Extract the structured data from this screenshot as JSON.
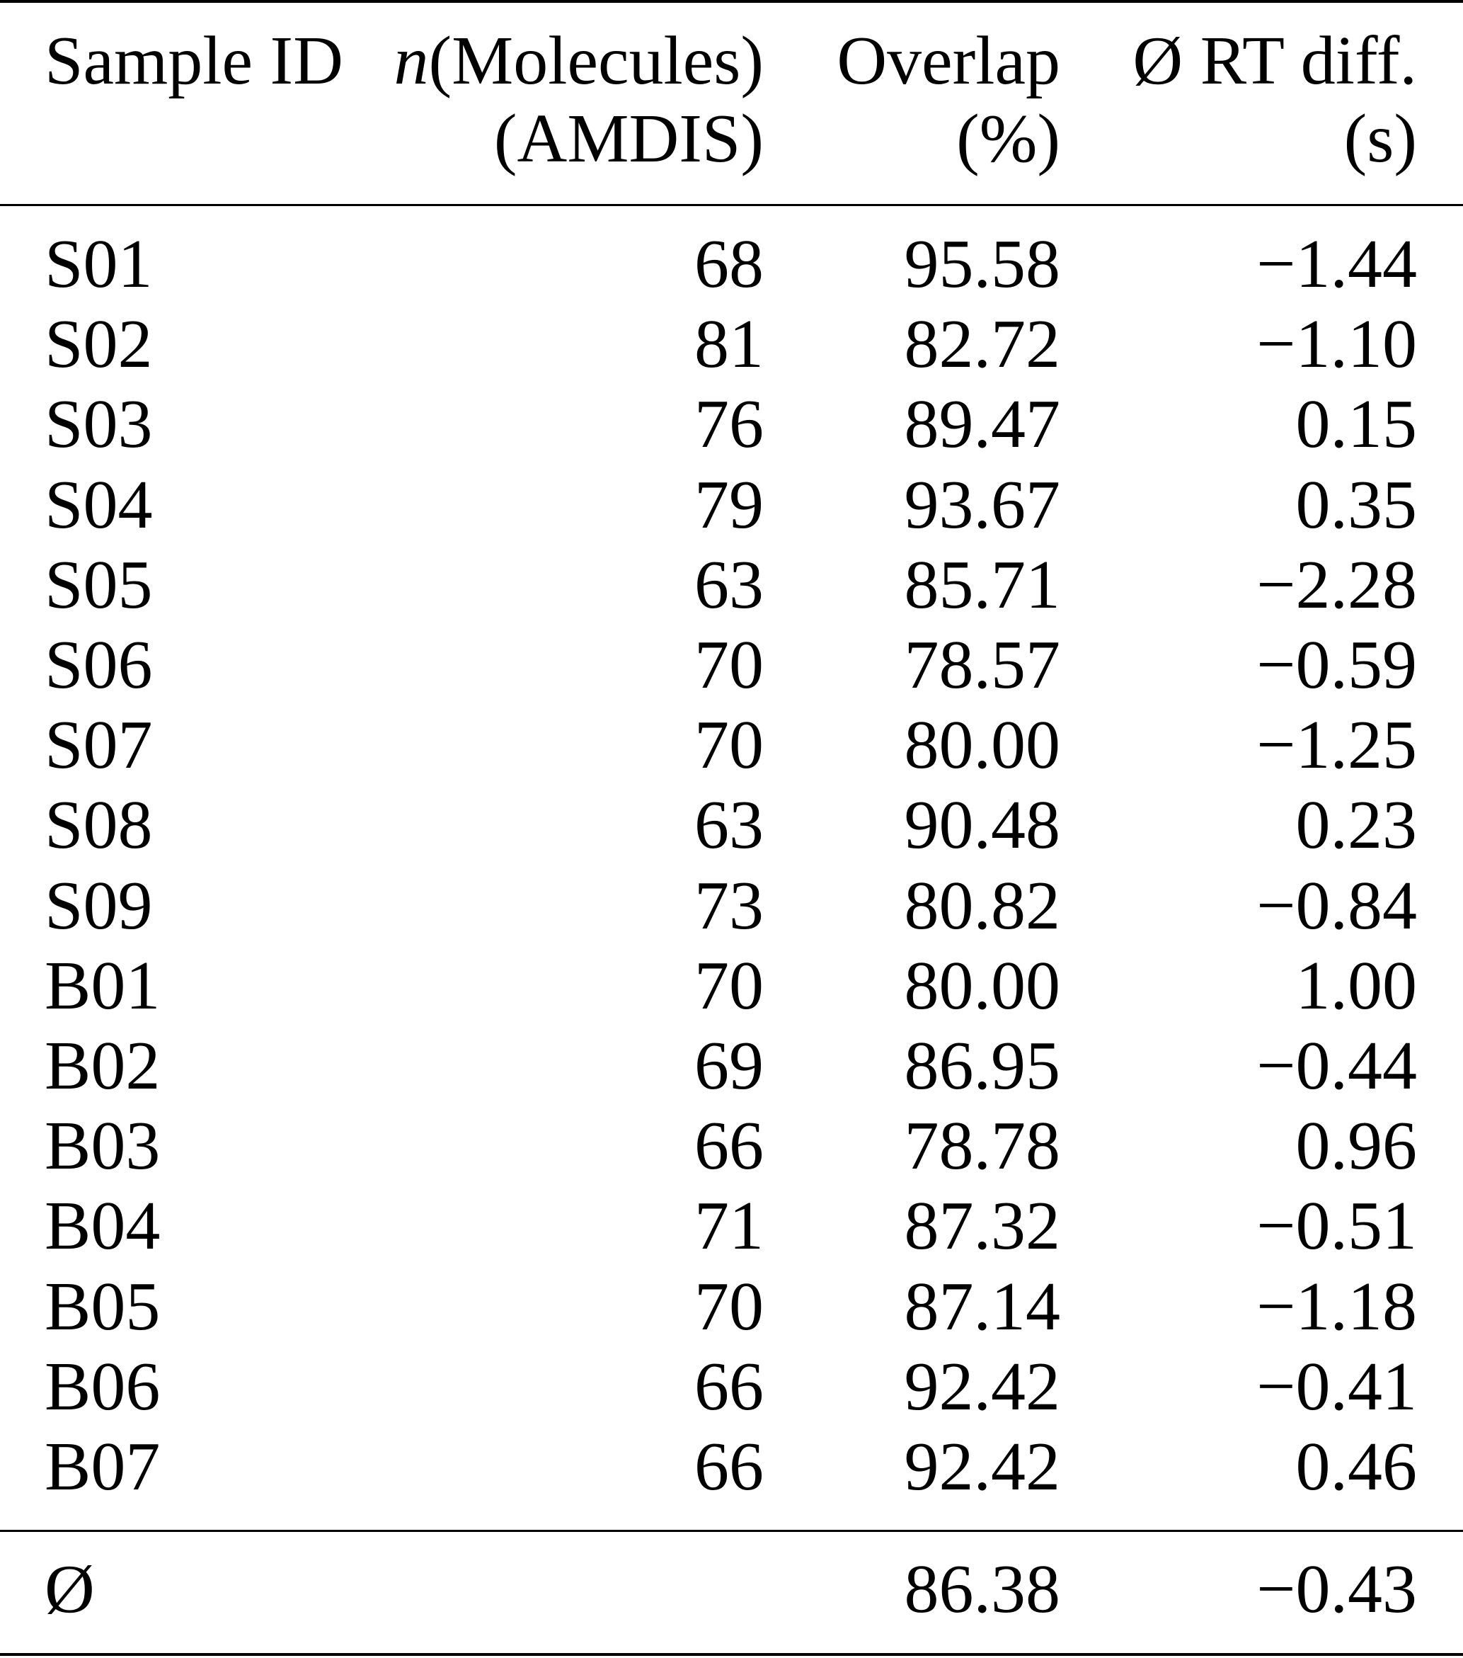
{
  "table": {
    "headers": [
      {
        "line1": "Sample ID",
        "line2": ""
      },
      {
        "line1_italic": "n",
        "line1": "(Molecules)",
        "line2": "(AMDIS)"
      },
      {
        "line1": "Overlap",
        "line2": "(%)"
      },
      {
        "line1": "Ø RT diff.",
        "line2": "(s)"
      }
    ],
    "rows": [
      [
        "S01",
        "68",
        "95.58",
        "−1.44"
      ],
      [
        "S02",
        "81",
        "82.72",
        "−1.10"
      ],
      [
        "S03",
        "76",
        "89.47",
        "0.15"
      ],
      [
        "S04",
        "79",
        "93.67",
        "0.35"
      ],
      [
        "S05",
        "63",
        "85.71",
        "−2.28"
      ],
      [
        "S06",
        "70",
        "78.57",
        "−0.59"
      ],
      [
        "S07",
        "70",
        "80.00",
        "−1.25"
      ],
      [
        "S08",
        "63",
        "90.48",
        "0.23"
      ],
      [
        "S09",
        "73",
        "80.82",
        "−0.84"
      ],
      [
        "B01",
        "70",
        "80.00",
        "1.00"
      ],
      [
        "B02",
        "69",
        "86.95",
        "−0.44"
      ],
      [
        "B03",
        "66",
        "78.78",
        "0.96"
      ],
      [
        "B04",
        "71",
        "87.32",
        "−0.51"
      ],
      [
        "B05",
        "70",
        "87.14",
        "−1.18"
      ],
      [
        "B06",
        "66",
        "92.42",
        "−0.41"
      ],
      [
        "B07",
        "66",
        "92.42",
        "0.46"
      ]
    ],
    "summary": [
      "Ø",
      "",
      "86.38",
      "−0.43"
    ]
  }
}
